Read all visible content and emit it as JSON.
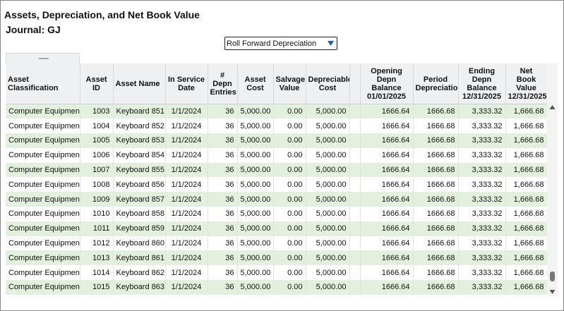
{
  "header": {
    "title": "Assets, Depreciation, and Net Book Value",
    "journal": "Journal: GJ"
  },
  "dropdown": {
    "label": "Roll Forward Depreciation"
  },
  "table": {
    "columns": [
      [
        "Asset",
        "Classification"
      ],
      [
        "Asset ID"
      ],
      [
        "Asset Name"
      ],
      [
        "In Service",
        "Date"
      ],
      [
        "#",
        "Depn",
        "Entries"
      ],
      [
        "Asset",
        "Cost"
      ],
      [
        "Salvage",
        "Value"
      ],
      [
        "Depreciable",
        "Cost"
      ],
      [
        "Opening",
        "Depn",
        "Balance",
        "01/01/2025"
      ],
      [
        "Period",
        "Depreciation"
      ],
      [
        "Ending",
        "Depn",
        "Balance",
        "12/31/2025"
      ],
      [
        "Net",
        "Book Value",
        "12/31/2025"
      ]
    ],
    "rows": [
      [
        "Computer Equipment",
        "1003",
        "Keyboard 851",
        "1/1/2024",
        "36",
        "5,000.00",
        "0.00",
        "5,000.00",
        "1666.64",
        "1666.68",
        "3,333.32",
        "1,666.68"
      ],
      [
        "Computer Equipment",
        "1004",
        "Keyboard 852",
        "1/1/2024",
        "36",
        "5,000.00",
        "0.00",
        "5,000.00",
        "1666.64",
        "1666.68",
        "3,333.32",
        "1,666.68"
      ],
      [
        "Computer Equipment",
        "1005",
        "Keyboard 853",
        "1/1/2024",
        "36",
        "5,000.00",
        "0.00",
        "5,000.00",
        "1666.64",
        "1666.68",
        "3,333.32",
        "1,666.68"
      ],
      [
        "Computer Equipment",
        "1006",
        "Keyboard 854",
        "1/1/2024",
        "36",
        "5,000.00",
        "0.00",
        "5,000.00",
        "1666.64",
        "1666.68",
        "3,333.32",
        "1,666.68"
      ],
      [
        "Computer Equipment",
        "1007",
        "Keyboard 855",
        "1/1/2024",
        "36",
        "5,000.00",
        "0.00",
        "5,000.00",
        "1666.64",
        "1666.68",
        "3,333.32",
        "1,666.68"
      ],
      [
        "Computer Equipment",
        "1008",
        "Keyboard 856",
        "1/1/2024",
        "36",
        "5,000.00",
        "0.00",
        "5,000.00",
        "1666.64",
        "1666.68",
        "3,333.32",
        "1,666.68"
      ],
      [
        "Computer Equipment",
        "1009",
        "Keyboard 857",
        "1/1/2024",
        "36",
        "5,000.00",
        "0.00",
        "5,000.00",
        "1666.64",
        "1666.68",
        "3,333.32",
        "1,666.68"
      ],
      [
        "Computer Equipment",
        "1010",
        "Keyboard 858",
        "1/1/2024",
        "36",
        "5,000.00",
        "0.00",
        "5,000.00",
        "1666.64",
        "1666.68",
        "3,333.32",
        "1,666.68"
      ],
      [
        "Computer Equipment",
        "1011",
        "Keyboard 859",
        "1/1/2024",
        "36",
        "5,000.00",
        "0.00",
        "5,000.00",
        "1666.64",
        "1666.68",
        "3,333.32",
        "1,666.68"
      ],
      [
        "Computer Equipment",
        "1012",
        "Keyboard 860",
        "1/1/2024",
        "36",
        "5,000.00",
        "0.00",
        "5,000.00",
        "1666.64",
        "1666.68",
        "3,333.32",
        "1,666.68"
      ],
      [
        "Computer Equipment",
        "1013",
        "Keyboard 861",
        "1/1/2024",
        "36",
        "5,000.00",
        "0.00",
        "5,000.00",
        "1666.64",
        "1666.68",
        "3,333.32",
        "1,666.68"
      ],
      [
        "Computer Equipment",
        "1014",
        "Keyboard 862",
        "1/1/2024",
        "36",
        "5,000.00",
        "0.00",
        "5,000.00",
        "1666.64",
        "1666.68",
        "3,333.32",
        "1,666.68"
      ],
      [
        "Computer Equipment",
        "1015",
        "Keyboard 863",
        "1/1/2024",
        "36",
        "5,000.00",
        "0.00",
        "5,000.00",
        "1666.64",
        "1666.68",
        "3,333.32",
        "1,666.68"
      ]
    ]
  }
}
